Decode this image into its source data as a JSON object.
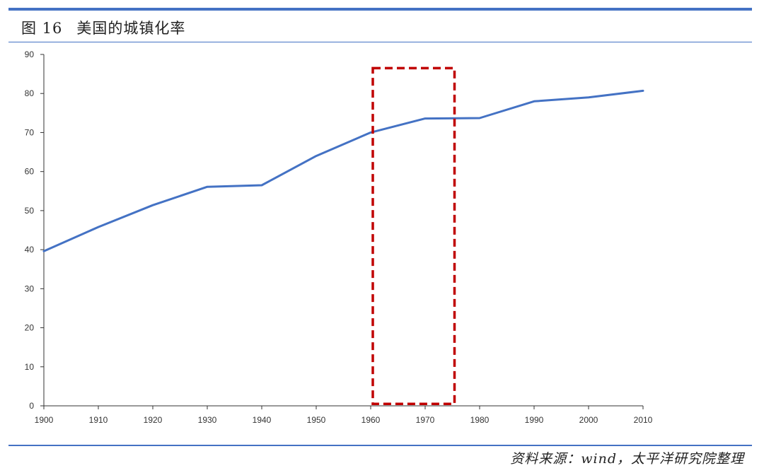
{
  "figure": {
    "number": "图 16",
    "title": "美国的城镇化率"
  },
  "source": "资料来源：wind，太平洋研究院整理",
  "colors": {
    "accent": "#4472c4",
    "line": "#4472c4",
    "highlight_box": "#c00000"
  },
  "chart_data": {
    "type": "line",
    "title": "",
    "xlabel": "",
    "ylabel": "",
    "x": [
      1900,
      1910,
      1920,
      1930,
      1940,
      1950,
      1960,
      1970,
      1980,
      1990,
      2000,
      2010
    ],
    "x_tick_labels": [
      "1900",
      "1910",
      "1920",
      "1930",
      "1940",
      "1950",
      "1960",
      "1970",
      "1980",
      "1990",
      "2000",
      "2010"
    ],
    "y_tick_labels": [
      "0",
      "10",
      "20",
      "30",
      "40",
      "50",
      "60",
      "70",
      "80",
      "90"
    ],
    "xlim": [
      1900,
      2010
    ],
    "ylim": [
      0,
      90
    ],
    "grid": false,
    "legend": "none",
    "series": [
      {
        "values": [
          39.6,
          45.8,
          51.4,
          56.1,
          56.5,
          64.0,
          70.0,
          73.6,
          73.7,
          78.0,
          79.0,
          80.7
        ]
      }
    ],
    "annotations": [
      {
        "type": "dashed-rectangle",
        "x_range": [
          1960,
          1975
        ],
        "y_range": [
          0.5,
          86.5
        ]
      }
    ]
  }
}
